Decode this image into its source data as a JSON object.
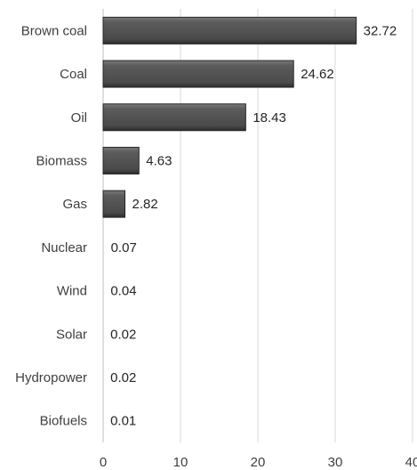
{
  "chart_data": {
    "type": "bar",
    "orientation": "horizontal",
    "categories": [
      "Brown coal",
      "Coal",
      "Oil",
      "Biomass",
      "Gas",
      "Nuclear",
      "Wind",
      "Solar",
      "Hydropower",
      "Biofuels"
    ],
    "values": [
      32.72,
      24.62,
      18.43,
      4.63,
      2.82,
      0.07,
      0.04,
      0.02,
      0.02,
      0.01
    ],
    "data_labels": [
      "32.72",
      "24.62",
      "18.43",
      "4.63",
      "2.82",
      "0.07",
      "0.04",
      "0.02",
      "0.02",
      "0.01"
    ],
    "x_ticks": [
      "0",
      "10",
      "20",
      "30",
      "40"
    ],
    "xlim": [
      0,
      40
    ],
    "grid": "vertical",
    "legend": "none",
    "title": "",
    "xlabel": "",
    "ylabel": "",
    "colors": {
      "bar_fill": "#595959",
      "bar_edge": "#262626",
      "grid": "#d9d9d9"
    }
  }
}
